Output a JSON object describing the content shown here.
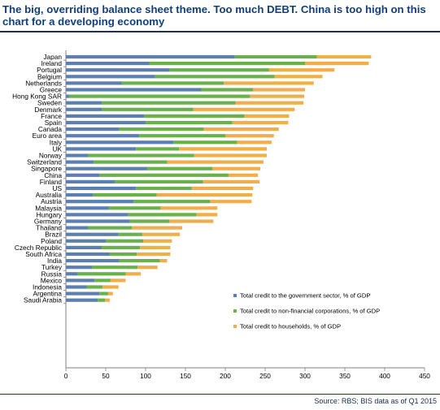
{
  "header": {
    "title": "The big, overriding balance sheet theme. Too much DEBT. China is too high on this chart for a developing economy"
  },
  "footer": {
    "source": "Source:  RBS; BIS data as of Q1 2015"
  },
  "chart_data": {
    "type": "bar",
    "orientation": "horizontal",
    "stacked": true,
    "title": "",
    "xlabel": "",
    "ylabel": "",
    "xlim": [
      0,
      450
    ],
    "xticks": [
      0,
      50,
      100,
      150,
      200,
      250,
      300,
      350,
      400,
      450
    ],
    "grid": false,
    "legend_position": "bottom-right",
    "categories": [
      "Japan",
      "Ireland",
      "Portugal",
      "Belgium",
      "Netherlands",
      "Greece",
      "Hong Kong SAR",
      "Sweden",
      "Denmark",
      "France",
      "Spain",
      "Canada",
      "Euro area",
      "Italy",
      "UK",
      "Norway",
      "Switzerland",
      "Singapore",
      "China",
      "Finland",
      "US",
      "Australia",
      "Austria",
      "Malaysia",
      "Hungary",
      "Germany",
      "Thailand",
      "Brazil",
      "Poland",
      "Czech Republic",
      "South Africa",
      "India",
      "Turkey",
      "Russia",
      "Mexico",
      "Indonesia",
      "Argentina",
      "Saudi Arabia"
    ],
    "series": [
      {
        "name": "Total credit to the government sector, % of GDP",
        "color": "#5b7fb0",
        "values": [
          212,
          105,
          130,
          112,
          70,
          170,
          4,
          45,
          45,
          98,
          100,
          67,
          92,
          135,
          88,
          28,
          35,
          102,
          42,
          62,
          88,
          34,
          85,
          54,
          78,
          80,
          28,
          66,
          50,
          45,
          55,
          67,
          33,
          15,
          36,
          26,
          42,
          40
        ]
      },
      {
        "name": "Total credit to non-financial corporations, % of GDP",
        "color": "#6ab04c",
        "values": [
          103,
          195,
          125,
          150,
          128,
          65,
          227,
          168,
          115,
          126,
          109,
          106,
          108,
          80,
          54,
          133,
          92,
          82,
          162,
          110,
          70,
          80,
          96,
          65,
          86,
          50,
          55,
          30,
          47,
          48,
          34,
          51,
          57,
          60,
          20,
          20,
          11,
          9
        ]
      },
      {
        "name": "Total credit to households, % of GDP",
        "color": "#f0ae4a",
        "values": [
          68,
          80,
          82,
          60,
          113,
          65,
          68,
          85,
          127,
          56,
          70,
          94,
          61,
          43,
          110,
          91,
          121,
          60,
          37,
          71,
          77,
          120,
          52,
          71,
          26,
          55,
          63,
          47,
          36,
          38,
          42,
          9,
          25,
          19,
          19,
          20,
          6,
          6
        ]
      }
    ]
  }
}
